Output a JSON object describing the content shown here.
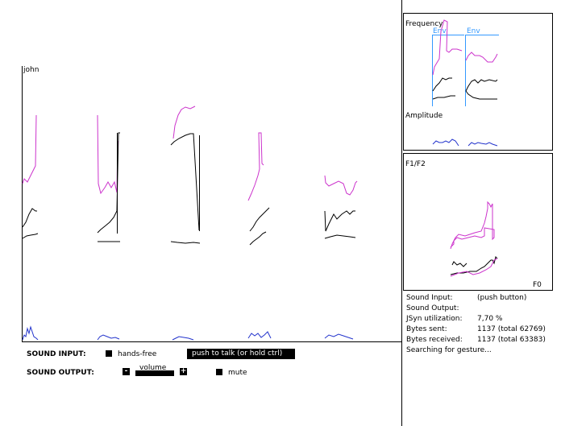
{
  "main_plot": {
    "speaker_label": "john"
  },
  "frequency_panel": {
    "title": "Frequency",
    "env_labels": [
      "Env",
      "Env"
    ]
  },
  "amplitude_panel": {
    "title": "Amplitude"
  },
  "f1f2_panel": {
    "title": "F1/F2",
    "corner_label": "F0"
  },
  "controls": {
    "sound_input_label": "SOUND INPUT:",
    "hands_free_label": "hands-free",
    "push_to_talk_label": "push to talk (or hold ctrl)",
    "sound_output_label": "SOUND OUTPUT:",
    "volume_label": "volume",
    "volume_minus": "-",
    "volume_plus": "+",
    "mute_label": "mute"
  },
  "status": {
    "rows": [
      {
        "key": "Sound Input:",
        "value": "(push button)"
      },
      {
        "key": "Sound Output:",
        "value": ""
      },
      {
        "key": "JSyn utilization:",
        "value": "7,70 %"
      },
      {
        "key": "Bytes sent:",
        "value": "1137 (total 62769)"
      },
      {
        "key": "Bytes received:",
        "value": "1137 (total 63383)"
      },
      {
        "key": "Searching for gesture...",
        "value": ""
      }
    ]
  },
  "colors": {
    "formant_high": "#cc33cc",
    "amplitude": "#2233cc",
    "env_axis": "#3399ff"
  }
}
